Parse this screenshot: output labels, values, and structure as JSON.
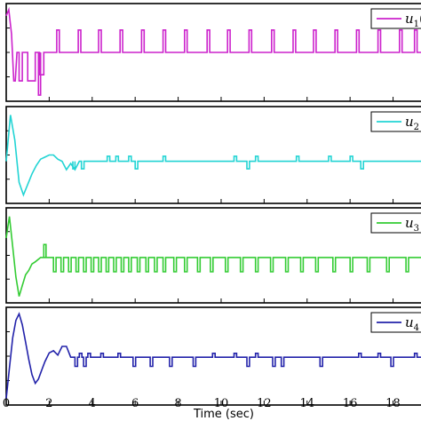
{
  "chart_data": [
    {
      "type": "line",
      "id": "u1",
      "legend": "u_1(",
      "legend_base": "u",
      "legend_sub": "1",
      "legend_tail": "(",
      "color": "#cc22cc",
      "legend_placement": "top-right",
      "x": [
        0,
        0.12,
        0.25,
        0.35,
        0.42,
        0.5,
        0.6,
        0.6,
        0.75,
        0.75,
        1.0,
        1.0,
        1.35,
        1.35,
        1.55,
        1.55,
        1.75,
        1.75
      ],
      "y": [
        1.0,
        1.15,
        0.55,
        -0.6,
        -0.6,
        0.1,
        0.1,
        -0.6,
        -0.6,
        0.1,
        0.1,
        -0.6,
        -0.6,
        0.1,
        0.1,
        -0.45,
        -0.45,
        0.1
      ],
      "spikes_up": [
        2.35,
        3.35,
        4.3,
        5.3,
        6.3,
        7.3,
        8.3,
        9.35,
        10.3,
        11.3,
        12.35,
        13.35,
        14.3,
        15.3,
        16.3,
        17.3,
        18.3,
        19.0
      ],
      "spike_up_value": 0.65,
      "spike_down": {
        "x": 1.5,
        "value": -0.95
      },
      "baseline": 0.1
    },
    {
      "type": "line",
      "id": "u2",
      "legend": "u_2",
      "legend_base": "u",
      "legend_sub": "2",
      "legend_tail": "",
      "color": "#22d4d4",
      "legend_placement": "top-right",
      "x": [
        0,
        0.2,
        0.4,
        0.6,
        0.8,
        1.0,
        1.2,
        1.4,
        1.6,
        1.8,
        2.0,
        2.2,
        2.4,
        2.6,
        2.8,
        3.0,
        3.2,
        3.4
      ],
      "y": [
        0.0,
        1.1,
        0.5,
        -0.5,
        -0.8,
        -0.55,
        -0.3,
        -0.1,
        0.05,
        0.1,
        0.15,
        0.15,
        0.05,
        0.0,
        -0.2,
        -0.05,
        -0.2,
        0.0
      ],
      "spikes_up": [
        4.7,
        5.1,
        5.7,
        7.3,
        10.6,
        11.6,
        13.5,
        15.0,
        16.0
      ],
      "spikes_down": [
        3.1,
        3.5,
        6.0,
        11.2,
        16.5
      ],
      "spike_up_value": 0.12,
      "spike_down_value": -0.18,
      "baseline": 0.0
    },
    {
      "type": "line",
      "id": "u3",
      "legend": "u_3",
      "legend_base": "u",
      "legend_sub": "3",
      "legend_tail": "",
      "color": "#33cc33",
      "legend_placement": "top-right",
      "x": [
        0,
        0.15,
        0.3,
        0.45,
        0.6,
        0.75,
        0.9,
        1.05,
        1.2,
        1.35,
        1.6,
        1.8,
        2.0
      ],
      "y": [
        0.5,
        1.0,
        0.3,
        -0.4,
        -0.85,
        -0.6,
        -0.35,
        -0.25,
        -0.1,
        -0.05,
        0.05,
        0.05,
        0.05
      ],
      "spikes_up": [
        1.75
      ],
      "spike_up_value": 0.35,
      "spikes_down": [
        2.2,
        2.55,
        2.9,
        3.25,
        3.6,
        3.95,
        4.3,
        4.65,
        5.0,
        5.35,
        5.7,
        6.1,
        6.5,
        6.9,
        7.3,
        7.8,
        8.3,
        8.9,
        9.5,
        10.2,
        10.9,
        11.6,
        12.3,
        13.0,
        13.7,
        14.4,
        15.2,
        16.0,
        16.8,
        17.7,
        18.6
      ],
      "spike_down_value": -0.28,
      "baseline": 0.05
    },
    {
      "type": "line",
      "id": "u4",
      "legend": "u_4",
      "legend_base": "u",
      "legend_sub": "4",
      "legend_tail": "",
      "color": "#2222aa",
      "legend_placement": "top-right",
      "x": [
        0,
        0.15,
        0.3,
        0.45,
        0.6,
        0.75,
        0.9,
        1.05,
        1.2,
        1.35,
        1.5,
        1.65,
        1.8,
        2.0,
        2.2,
        2.4,
        2.6,
        2.8,
        3.0
      ],
      "y": [
        -0.9,
        -0.2,
        0.5,
        0.9,
        1.05,
        0.8,
        0.4,
        0.0,
        -0.35,
        -0.55,
        -0.45,
        -0.25,
        -0.05,
        0.15,
        0.2,
        0.1,
        0.3,
        0.3,
        0.05
      ],
      "spikes_up": [
        3.4,
        3.8,
        4.4,
        5.2,
        9.6,
        10.6,
        11.6,
        16.4,
        17.3,
        19.0
      ],
      "spikes_down": [
        3.2,
        3.6,
        5.9,
        6.7,
        7.6,
        8.7,
        11.2,
        12.4,
        12.8,
        14.6,
        17.9
      ],
      "spike_up_value": 0.14,
      "spike_down_value": -0.16,
      "baseline": 0.05
    }
  ],
  "shared_x_axis": {
    "label": "Time (sec)",
    "ticks": [
      0,
      2,
      4,
      6,
      8,
      10,
      12,
      14,
      16,
      18
    ],
    "tick_labels": [
      "0",
      "2",
      "4",
      "6",
      "8",
      "10",
      "12",
      "14",
      "16",
      "18"
    ],
    "xlim": [
      0,
      19.3
    ]
  },
  "colors": {
    "axes": "#000000",
    "background": "#ffffff"
  }
}
